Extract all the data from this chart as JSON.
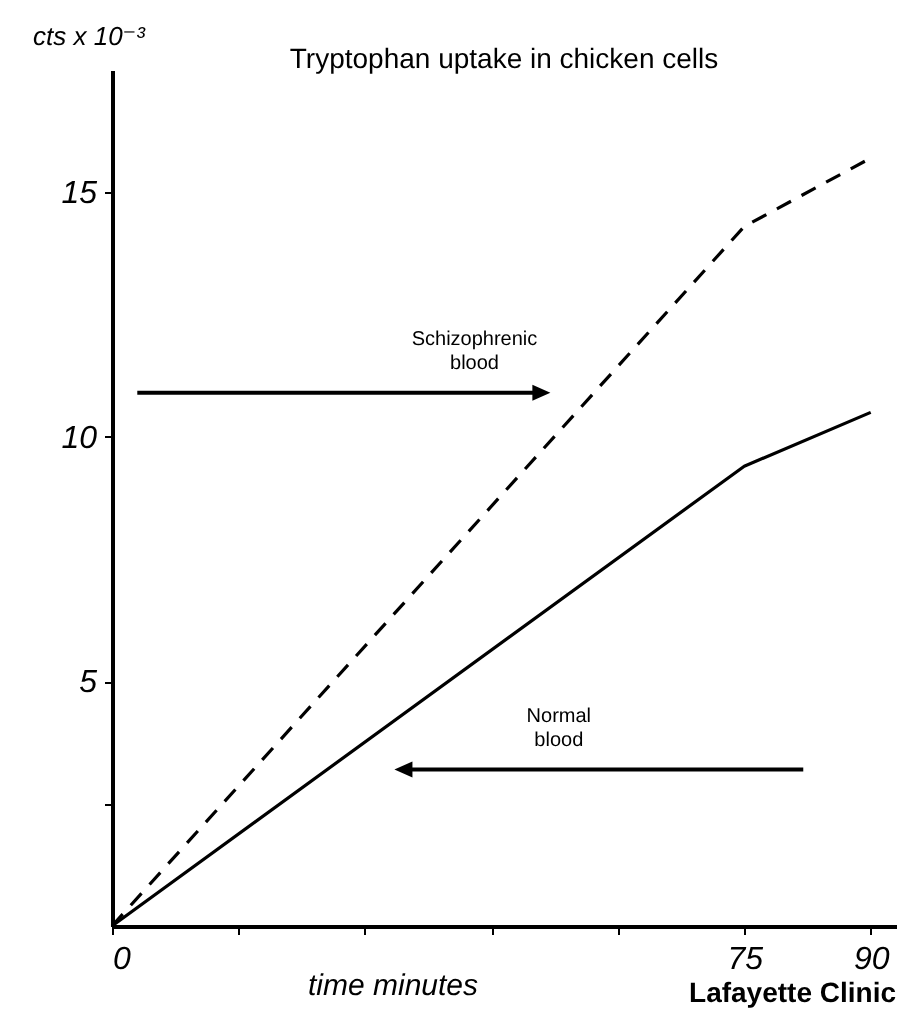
{
  "chart_data": {
    "type": "line",
    "title": "Tryptophan uptake in chicken cells",
    "xlabel": "time   minutes",
    "ylabel": "cts x 10⁻³",
    "x": [
      0,
      75,
      90
    ],
    "series": [
      {
        "color": "#000000",
        "line_style": "dashed",
        "values": [
          0,
          14.3,
          15.7
        ]
      },
      {
        "color": "#000000",
        "line_style": "solid",
        "values": [
          0,
          9.4,
          10.5
        ]
      }
    ],
    "xlim": [
      0,
      93
    ],
    "ylim": [
      0,
      17.5
    ],
    "xticks": [
      0,
      {
        "value": 15,
        "label": null
      },
      {
        "value": 30,
        "label": null
      },
      {
        "value": 45,
        "label": null
      },
      {
        "value": 60,
        "label": null
      },
      75,
      90
    ],
    "yticks": [
      {
        "value": 2.5,
        "label": null
      },
      5,
      10,
      15
    ],
    "annotations": [
      "Schizophrenic blood",
      "Normal blood",
      "Lafayette Clinic"
    ],
    "grid": false,
    "legend": false,
    "marker": "none"
  }
}
